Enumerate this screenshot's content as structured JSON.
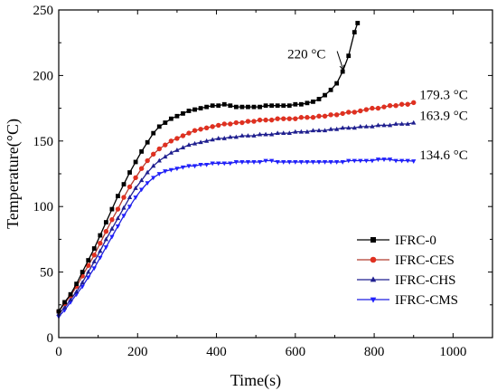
{
  "chart_data": {
    "type": "line",
    "xlabel": "Time(s)",
    "ylabel": "Temperature(°C)",
    "xlim": [
      0,
      1100
    ],
    "ylim": [
      0,
      250
    ],
    "xticks": [
      0,
      200,
      400,
      600,
      800,
      1000
    ],
    "yticks": [
      0,
      50,
      100,
      150,
      200,
      250
    ],
    "legend_position": "lower-right",
    "series": [
      {
        "name": "IFRC-0",
        "color": "#000000",
        "marker": "square",
        "points": [
          [
            0,
            20
          ],
          [
            15,
            27
          ],
          [
            30,
            33
          ],
          [
            45,
            41
          ],
          [
            60,
            50
          ],
          [
            75,
            59
          ],
          [
            90,
            68
          ],
          [
            105,
            78
          ],
          [
            120,
            88
          ],
          [
            135,
            98
          ],
          [
            150,
            108
          ],
          [
            165,
            117
          ],
          [
            180,
            126
          ],
          [
            195,
            134
          ],
          [
            210,
            142
          ],
          [
            225,
            149
          ],
          [
            240,
            156
          ],
          [
            255,
            161
          ],
          [
            270,
            164
          ],
          [
            285,
            167
          ],
          [
            300,
            169
          ],
          [
            315,
            171
          ],
          [
            330,
            173
          ],
          [
            345,
            174
          ],
          [
            360,
            175
          ],
          [
            375,
            176
          ],
          [
            390,
            177
          ],
          [
            405,
            177
          ],
          [
            420,
            178
          ],
          [
            435,
            177
          ],
          [
            450,
            176
          ],
          [
            465,
            176
          ],
          [
            480,
            176
          ],
          [
            495,
            176
          ],
          [
            510,
            176
          ],
          [
            525,
            177
          ],
          [
            540,
            177
          ],
          [
            555,
            177
          ],
          [
            570,
            177
          ],
          [
            585,
            177
          ],
          [
            600,
            178
          ],
          [
            615,
            178
          ],
          [
            630,
            179
          ],
          [
            645,
            180
          ],
          [
            660,
            182
          ],
          [
            675,
            185
          ],
          [
            690,
            189
          ],
          [
            705,
            194
          ],
          [
            720,
            203
          ],
          [
            735,
            215
          ],
          [
            750,
            233
          ],
          [
            758,
            240
          ]
        ]
      },
      {
        "name": "IFRC-CES",
        "color": "#b03a2e",
        "marker": "circle",
        "points": [
          [
            0,
            20
          ],
          [
            15,
            26
          ],
          [
            30,
            32
          ],
          [
            45,
            39
          ],
          [
            60,
            47
          ],
          [
            75,
            55
          ],
          [
            90,
            63
          ],
          [
            105,
            72
          ],
          [
            120,
            81
          ],
          [
            135,
            90
          ],
          [
            150,
            98
          ],
          [
            165,
            107
          ],
          [
            180,
            115
          ],
          [
            195,
            122
          ],
          [
            210,
            129
          ],
          [
            225,
            135
          ],
          [
            240,
            140
          ],
          [
            255,
            144
          ],
          [
            270,
            147
          ],
          [
            285,
            150
          ],
          [
            300,
            152
          ],
          [
            315,
            154
          ],
          [
            330,
            156
          ],
          [
            345,
            158
          ],
          [
            360,
            159
          ],
          [
            375,
            160
          ],
          [
            390,
            161
          ],
          [
            405,
            162
          ],
          [
            420,
            163
          ],
          [
            435,
            163
          ],
          [
            450,
            164
          ],
          [
            465,
            164
          ],
          [
            480,
            165
          ],
          [
            495,
            165
          ],
          [
            510,
            166
          ],
          [
            525,
            166
          ],
          [
            540,
            166
          ],
          [
            555,
            167
          ],
          [
            570,
            167
          ],
          [
            585,
            167
          ],
          [
            600,
            167
          ],
          [
            615,
            168
          ],
          [
            630,
            168
          ],
          [
            645,
            168
          ],
          [
            660,
            169
          ],
          [
            675,
            169
          ],
          [
            690,
            170
          ],
          [
            705,
            170
          ],
          [
            720,
            171
          ],
          [
            735,
            172
          ],
          [
            750,
            172
          ],
          [
            765,
            173
          ],
          [
            780,
            174
          ],
          [
            795,
            175
          ],
          [
            810,
            175
          ],
          [
            825,
            176
          ],
          [
            840,
            177
          ],
          [
            855,
            177
          ],
          [
            870,
            178
          ],
          [
            885,
            178
          ],
          [
            900,
            179.3
          ]
        ]
      },
      {
        "name": "IFRC-CHS",
        "color": "#1f1f8f",
        "marker": "triangle-up",
        "points": [
          [
            0,
            18
          ],
          [
            15,
            23
          ],
          [
            30,
            29
          ],
          [
            45,
            35
          ],
          [
            60,
            42
          ],
          [
            75,
            50
          ],
          [
            90,
            58
          ],
          [
            105,
            66
          ],
          [
            120,
            75
          ],
          [
            135,
            83
          ],
          [
            150,
            91
          ],
          [
            165,
            99
          ],
          [
            180,
            107
          ],
          [
            195,
            114
          ],
          [
            210,
            120
          ],
          [
            225,
            126
          ],
          [
            240,
            131
          ],
          [
            255,
            135
          ],
          [
            270,
            138
          ],
          [
            285,
            141
          ],
          [
            300,
            143
          ],
          [
            315,
            145
          ],
          [
            330,
            147
          ],
          [
            345,
            148
          ],
          [
            360,
            149
          ],
          [
            375,
            150
          ],
          [
            390,
            151
          ],
          [
            405,
            152
          ],
          [
            420,
            152
          ],
          [
            435,
            153
          ],
          [
            450,
            153
          ],
          [
            465,
            154
          ],
          [
            480,
            154
          ],
          [
            495,
            154
          ],
          [
            510,
            155
          ],
          [
            525,
            155
          ],
          [
            540,
            155
          ],
          [
            555,
            156
          ],
          [
            570,
            156
          ],
          [
            585,
            156
          ],
          [
            600,
            157
          ],
          [
            615,
            157
          ],
          [
            630,
            157
          ],
          [
            645,
            158
          ],
          [
            660,
            158
          ],
          [
            675,
            158
          ],
          [
            690,
            159
          ],
          [
            705,
            159
          ],
          [
            720,
            160
          ],
          [
            735,
            160
          ],
          [
            750,
            160
          ],
          [
            765,
            161
          ],
          [
            780,
            161
          ],
          [
            795,
            161
          ],
          [
            810,
            162
          ],
          [
            825,
            162
          ],
          [
            840,
            162
          ],
          [
            855,
            163
          ],
          [
            870,
            163
          ],
          [
            885,
            163
          ],
          [
            900,
            163.9
          ]
        ]
      },
      {
        "name": "IFRC-CMS",
        "color": "#1f1fe0",
        "marker": "triangle-down",
        "points": [
          [
            0,
            16
          ],
          [
            15,
            21
          ],
          [
            30,
            27
          ],
          [
            45,
            33
          ],
          [
            60,
            39
          ],
          [
            75,
            46
          ],
          [
            90,
            53
          ],
          [
            105,
            61
          ],
          [
            120,
            69
          ],
          [
            135,
            77
          ],
          [
            150,
            85
          ],
          [
            165,
            93
          ],
          [
            180,
            100
          ],
          [
            195,
            107
          ],
          [
            210,
            113
          ],
          [
            225,
            118
          ],
          [
            240,
            122
          ],
          [
            255,
            125
          ],
          [
            270,
            127
          ],
          [
            285,
            128
          ],
          [
            300,
            129
          ],
          [
            315,
            130
          ],
          [
            330,
            131
          ],
          [
            345,
            131
          ],
          [
            360,
            132
          ],
          [
            375,
            132
          ],
          [
            390,
            133
          ],
          [
            405,
            133
          ],
          [
            420,
            133
          ],
          [
            435,
            133
          ],
          [
            450,
            134
          ],
          [
            465,
            134
          ],
          [
            480,
            134
          ],
          [
            495,
            134
          ],
          [
            510,
            134
          ],
          [
            525,
            135
          ],
          [
            540,
            135
          ],
          [
            555,
            134
          ],
          [
            570,
            134
          ],
          [
            585,
            134
          ],
          [
            600,
            134
          ],
          [
            615,
            134
          ],
          [
            630,
            134
          ],
          [
            645,
            134
          ],
          [
            660,
            134
          ],
          [
            675,
            134
          ],
          [
            690,
            134
          ],
          [
            705,
            134
          ],
          [
            720,
            134
          ],
          [
            735,
            135
          ],
          [
            750,
            135
          ],
          [
            765,
            135
          ],
          [
            780,
            135
          ],
          [
            795,
            135
          ],
          [
            810,
            136
          ],
          [
            825,
            136
          ],
          [
            840,
            136
          ],
          [
            855,
            135
          ],
          [
            870,
            135
          ],
          [
            885,
            135
          ],
          [
            900,
            134.6
          ]
        ]
      }
    ],
    "annotations": [
      {
        "text": "220 °C",
        "x": 580,
        "y": 213,
        "arrow_to": [
          722,
          204
        ]
      },
      {
        "text": "179.3 °C",
        "x": 915,
        "y": 182
      },
      {
        "text": "163.9 °C",
        "x": 915,
        "y": 166
      },
      {
        "text": "134.6 °C",
        "x": 915,
        "y": 136
      }
    ]
  }
}
